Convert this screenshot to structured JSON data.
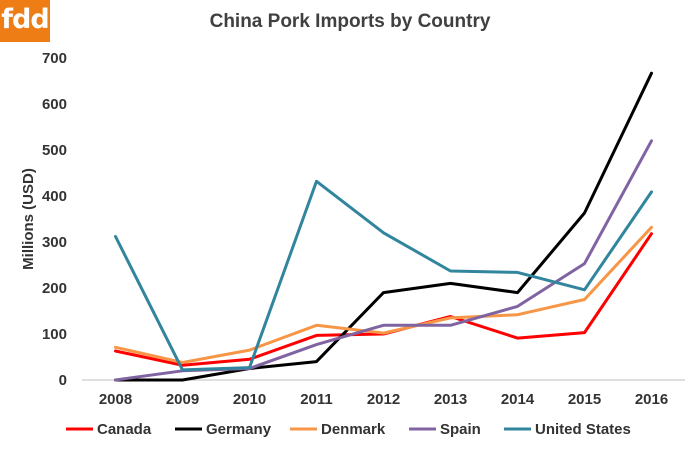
{
  "logo": {
    "text": "fdd",
    "color": "#ef7d16"
  },
  "chart_data": {
    "type": "line",
    "title": "China Pork Imports by Country",
    "xlabel": "",
    "ylabel": "Millions (USD)",
    "x": [
      "2008",
      "2009",
      "2010",
      "2011",
      "2012",
      "2013",
      "2014",
      "2015",
      "2016"
    ],
    "ylim": [
      0,
      700
    ],
    "yticks": [
      0,
      100,
      200,
      300,
      400,
      500,
      600,
      700
    ],
    "grid": false,
    "legend": "bottom",
    "series": [
      {
        "name": "Canada",
        "color": "#ff0000",
        "values": [
          63,
          32,
          45,
          97,
          100,
          138,
          91,
          103,
          318
        ]
      },
      {
        "name": "Germany",
        "color": "#000000",
        "values": [
          0,
          0,
          25,
          40,
          190,
          210,
          190,
          363,
          667
        ]
      },
      {
        "name": "Denmark",
        "color": "#f79646",
        "values": [
          71,
          38,
          65,
          119,
          102,
          135,
          142,
          175,
          332
        ]
      },
      {
        "name": "Spain",
        "color": "#8064a2",
        "values": [
          0,
          20,
          25,
          77,
          119,
          119,
          160,
          253,
          520
        ]
      },
      {
        "name": "United States",
        "color": "#31859c",
        "values": [
          312,
          22,
          27,
          432,
          320,
          237,
          234,
          196,
          409
        ]
      }
    ]
  }
}
